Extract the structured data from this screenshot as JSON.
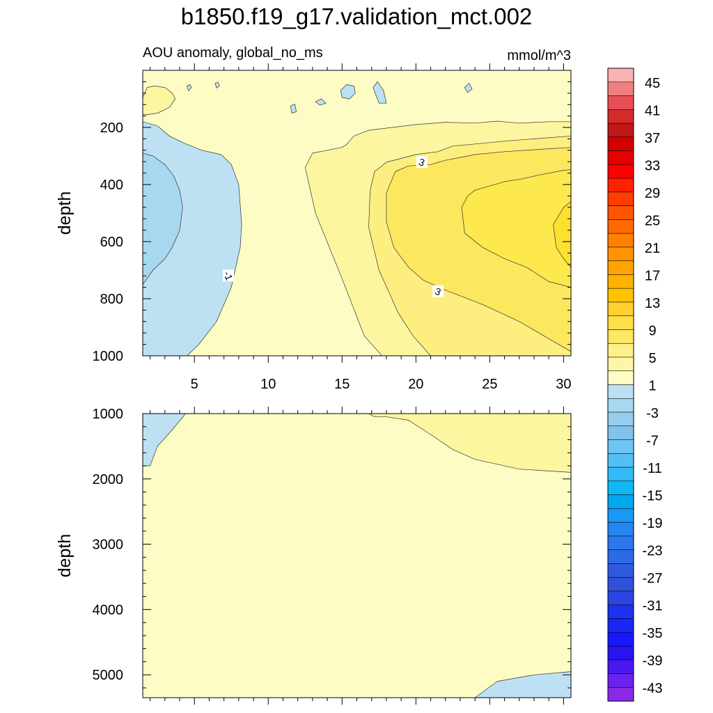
{
  "title": "b1850.f19_g17.validation_mct.002",
  "chart_data": {
    "type": "contour",
    "subtitle_left": "AOU anomaly, global_no_ms",
    "subtitle_right": "mmol/m^3",
    "x_range": [
      1.5,
      30.5
    ],
    "x_ticks": [
      5,
      10,
      15,
      20,
      25,
      30
    ],
    "panels": [
      {
        "name": "upper",
        "ylabel": "depth",
        "y_range": [
          0,
          1000
        ],
        "y_ticks": [
          200,
          400,
          600,
          800,
          1000
        ],
        "regions": [
          {
            "color": "#fcfcc4",
            "points": [
              [
                1.5,
                0
              ],
              [
                30.5,
                0
              ],
              [
                30.5,
                1000
              ],
              [
                1.5,
                1000
              ]
            ]
          },
          {
            "color": "#fdf6a0",
            "points": [
              [
                17.7,
                1000
              ],
              [
                16.5,
                930
              ],
              [
                15,
                730
              ],
              [
                13.2,
                500
              ],
              [
                12.5,
                340
              ],
              [
                13,
                290
              ],
              [
                15,
                270
              ],
              [
                15.3,
                260
              ],
              [
                15.8,
                230
              ],
              [
                16.8,
                210
              ],
              [
                20,
                190
              ],
              [
                22,
                182
              ],
              [
                24,
                185
              ],
              [
                25.5,
                178
              ],
              [
                27,
                185
              ],
              [
                29,
                180
              ],
              [
                30.5,
                180
              ],
              [
                30.5,
                1000
              ]
            ]
          },
          {
            "color": "#fdee80",
            "points": [
              [
                21,
                1000
              ],
              [
                19.8,
                930
              ],
              [
                18.8,
                850
              ],
              [
                17.5,
                700
              ],
              [
                16.8,
                550
              ],
              [
                16.9,
                420
              ],
              [
                17.2,
                355
              ],
              [
                18,
                322
              ],
              [
                20,
                295
              ],
              [
                21.5,
                285
              ],
              [
                22.5,
                265
              ],
              [
                24,
                258
              ],
              [
                26,
                248
              ],
              [
                28,
                240
              ],
              [
                30.5,
                230
              ],
              [
                30.5,
                1000
              ]
            ]
          },
          {
            "color": "#fde75f",
            "points": [
              [
                30.5,
                985
              ],
              [
                29,
                940
              ],
              [
                27,
                880
              ],
              [
                24.5,
                820
              ],
              [
                22,
                770
              ],
              [
                20.5,
                735
              ],
              [
                19.5,
                690
              ],
              [
                18.5,
                620
              ],
              [
                18,
                530
              ],
              [
                18,
                430
              ],
              [
                18.6,
                355
              ],
              [
                19.5,
                335
              ],
              [
                21,
                330
              ],
              [
                22,
                315
              ],
              [
                23,
                305
              ],
              [
                24,
                295
              ],
              [
                26,
                285
              ],
              [
                28,
                278
              ],
              [
                30.5,
                270
              ],
              [
                30.5,
                985
              ]
            ]
          },
          {
            "color": "#fde84d",
            "points": [
              [
                30.5,
                760
              ],
              [
                29,
                740
              ],
              [
                27.5,
                690
              ],
              [
                26,
                660
              ],
              [
                24.5,
                620
              ],
              [
                23.3,
                570
              ],
              [
                23.1,
                480
              ],
              [
                23.5,
                440
              ],
              [
                24,
                420
              ],
              [
                25,
                405
              ],
              [
                26,
                390
              ],
              [
                27.2,
                380
              ],
              [
                28.5,
                365
              ],
              [
                30,
                350
              ],
              [
                30.5,
                348
              ],
              [
                30.5,
                760
              ]
            ]
          },
          {
            "color": "#fde030",
            "points": [
              [
                30.5,
                460
              ],
              [
                30,
                480
              ],
              [
                29.3,
                540
              ],
              [
                29.5,
                620
              ],
              [
                30,
                660
              ],
              [
                30.5,
                690
              ]
            ]
          },
          {
            "color": "#fdf6a0",
            "points": [
              [
                1.5,
                95
              ],
              [
                1.8,
                60
              ],
              [
                2.3,
                55
              ],
              [
                3,
                60
              ],
              [
                3.5,
                80
              ],
              [
                3.7,
                100
              ],
              [
                3.3,
                130
              ],
              [
                2.5,
                150
              ],
              [
                1.8,
                155
              ],
              [
                1.5,
                155
              ]
            ]
          },
          {
            "color": "#bde1f2",
            "points": [
              [
                1.5,
                180
              ],
              [
                2.5,
                195
              ],
              [
                3.3,
                230
              ],
              [
                4.3,
                255
              ],
              [
                5.5,
                280
              ],
              [
                6.8,
                295
              ],
              [
                7.5,
                330
              ],
              [
                8,
                400
              ],
              [
                8.2,
                540
              ],
              [
                8.1,
                620
              ],
              [
                7.5,
                760
              ],
              [
                6.5,
                880
              ],
              [
                5.3,
                960
              ],
              [
                4.5,
                1000
              ],
              [
                1.5,
                1000
              ]
            ]
          },
          {
            "color": "#a6d9f0",
            "points": [
              [
                1.5,
                290
              ],
              [
                2.2,
                300
              ],
              [
                3,
                330
              ],
              [
                3.6,
                370
              ],
              [
                4,
                420
              ],
              [
                4.2,
                480
              ],
              [
                4.0,
                560
              ],
              [
                3.5,
                620
              ],
              [
                3,
                660
              ],
              [
                2.2,
                700
              ],
              [
                1.5,
                750
              ]
            ]
          },
          {
            "color": "#bde1f2",
            "points": [
              [
                4.5,
                55
              ],
              [
                4.7,
                50
              ],
              [
                4.8,
                60
              ],
              [
                4.6,
                72
              ]
            ]
          },
          {
            "color": "#bde1f2",
            "points": [
              [
                6.4,
                45
              ],
              [
                6.6,
                42
              ],
              [
                6.7,
                55
              ],
              [
                6.5,
                62
              ]
            ]
          },
          {
            "color": "#bde1f2",
            "points": [
              [
                11.5,
                125
              ],
              [
                11.8,
                118
              ],
              [
                11.9,
                145
              ],
              [
                11.6,
                150
              ]
            ]
          },
          {
            "color": "#bde1f2",
            "points": [
              [
                13.2,
                110
              ],
              [
                13.6,
                100
              ],
              [
                13.9,
                115
              ],
              [
                13.5,
                122
              ]
            ]
          },
          {
            "color": "#bde1f2",
            "points": [
              [
                14.9,
                70
              ],
              [
                15.3,
                50
              ],
              [
                15.8,
                55
              ],
              [
                15.9,
                80
              ],
              [
                15.5,
                100
              ],
              [
                15.0,
                95
              ]
            ]
          },
          {
            "color": "#bde1f2",
            "points": [
              [
                17.1,
                60
              ],
              [
                17.4,
                40
              ],
              [
                17.8,
                70
              ],
              [
                18.0,
                115
              ],
              [
                17.5,
                115
              ]
            ]
          },
          {
            "color": "#bde1f2",
            "points": [
              [
                23.3,
                60
              ],
              [
                23.6,
                45
              ],
              [
                23.8,
                65
              ],
              [
                23.5,
                78
              ]
            ]
          }
        ],
        "labels": [
          {
            "text": "-1",
            "x": 7.3,
            "y": 720
          },
          {
            "text": "3",
            "x": 20.4,
            "y": 322
          },
          {
            "text": "3",
            "x": 21.5,
            "y": 775
          }
        ]
      },
      {
        "name": "lower",
        "ylabel": "depth",
        "y_range": [
          1000,
          5350
        ],
        "y_ticks": [
          1000,
          2000,
          3000,
          4000,
          5000
        ],
        "regions": [
          {
            "color": "#fcfcc4",
            "points": [
              [
                1.5,
                1000
              ],
              [
                30.5,
                1000
              ],
              [
                30.5,
                5350
              ],
              [
                1.5,
                5350
              ]
            ]
          },
          {
            "color": "#bde1f2",
            "points": [
              [
                1.5,
                1000
              ],
              [
                4.4,
                1000
              ],
              [
                3.5,
                1250
              ],
              [
                2.5,
                1500
              ],
              [
                2.0,
                1800
              ],
              [
                1.5,
                1800
              ]
            ]
          },
          {
            "color": "#fdf6a0",
            "points": [
              [
                16.8,
                1000
              ],
              [
                30.5,
                1000
              ],
              [
                30.5,
                1900
              ],
              [
                27,
                1850
              ],
              [
                24,
                1700
              ],
              [
                22.5,
                1550
              ],
              [
                21,
                1320
              ],
              [
                19.5,
                1100
              ],
              [
                18,
                1050
              ],
              [
                17.2,
                1050
              ]
            ]
          },
          {
            "color": "#bde1f2",
            "points": [
              [
                24,
                5350
              ],
              [
                25.5,
                5100
              ],
              [
                28,
                5000
              ],
              [
                30.5,
                4950
              ],
              [
                30.5,
                5350
              ]
            ]
          }
        ],
        "labels": []
      }
    ],
    "colorbar": {
      "labels": [
        "45",
        "41",
        "37",
        "33",
        "29",
        "25",
        "21",
        "17",
        "13",
        "9",
        "5",
        "1",
        "-3",
        "-7",
        "-11",
        "-15",
        "-19",
        "-23",
        "-27",
        "-31",
        "-35",
        "-39",
        "-43"
      ],
      "colors": [
        "#fbb2b2",
        "#f08080",
        "#e84f55",
        "#d42b2b",
        "#c01818",
        "#d40000",
        "#e80000",
        "#ff0000",
        "#ff2200",
        "#ff3d00",
        "#ff5500",
        "#ff6a00",
        "#ff8000",
        "#ff9300",
        "#ffa500",
        "#ffb300",
        "#ffc300",
        "#ffd030",
        "#ffdf4a",
        "#fde860",
        "#fdf08a",
        "#fdf6a6",
        "#fcfcc4",
        "#bde1f2",
        "#a8d7f0",
        "#96cdee",
        "#82c3ec",
        "#6dc6f2",
        "#52bff5",
        "#34bbf7",
        "#10b8f8",
        "#00a8f0",
        "#1a98f5",
        "#2686f0",
        "#2a78ec",
        "#2c6ae8",
        "#2e5ae0",
        "#3050dc",
        "#2c44e0",
        "#1e30f0",
        "#1a28f5",
        "#1818ff",
        "#2a14f0",
        "#4a18f0",
        "#6a22ec",
        "#8a2ae8"
      ]
    }
  }
}
